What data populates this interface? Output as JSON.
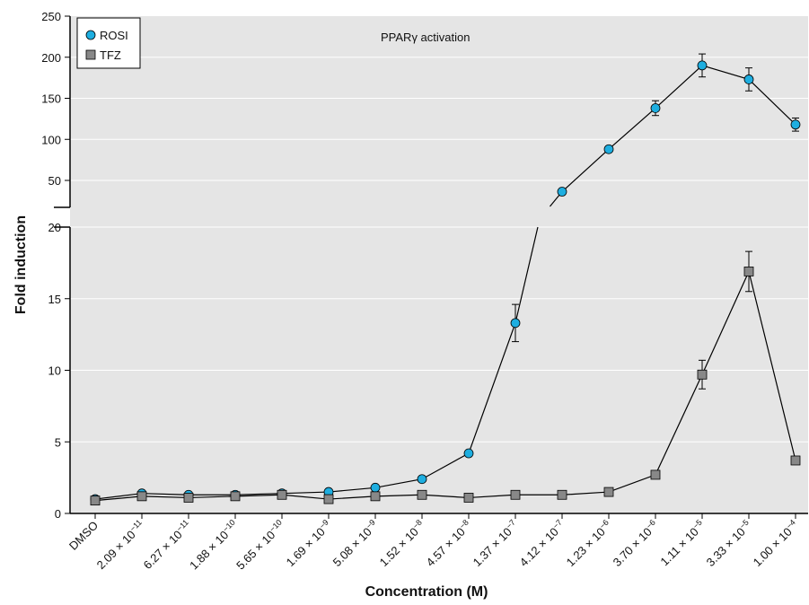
{
  "chart_data": {
    "type": "line",
    "annotation": "PPARγ activation",
    "annotation_parts": [
      "PPAR",
      "γ",
      " activation"
    ],
    "xlabel": "Concentration (M)",
    "ylabel": "Fold induction",
    "categories": [
      {
        "label": "DMSO"
      },
      {
        "mant": "2.09",
        "exp": "−11"
      },
      {
        "mant": "6.27",
        "exp": "−11"
      },
      {
        "mant": "1.88",
        "exp": "−10"
      },
      {
        "mant": "5.65",
        "exp": "−10"
      },
      {
        "mant": "1.69",
        "exp": "−9"
      },
      {
        "mant": "5.08",
        "exp": "−9"
      },
      {
        "mant": "1.52",
        "exp": "−8"
      },
      {
        "mant": "4.57",
        "exp": "−8"
      },
      {
        "mant": "1.37",
        "exp": "−7"
      },
      {
        "mant": "4.12",
        "exp": "−7"
      },
      {
        "mant": "1.23",
        "exp": "−6"
      },
      {
        "mant": "3.70",
        "exp": "−6"
      },
      {
        "mant": "1.11",
        "exp": "−5"
      },
      {
        "mant": "3.33",
        "exp": "−5"
      },
      {
        "mant": "1.00",
        "exp": "−4"
      }
    ],
    "y_ticks_lower": [
      0,
      5,
      10,
      15,
      20
    ],
    "y_ticks_upper": [
      50,
      100,
      150,
      200,
      250
    ],
    "ylim_lower": [
      0,
      20
    ],
    "ylim_upper": [
      20,
      250
    ],
    "y_break": true,
    "grid": true,
    "legend_position": "top-left",
    "series": [
      {
        "name": "ROSI",
        "marker": "circle",
        "color": "#1eaee0",
        "values": [
          1.0,
          1.4,
          1.3,
          1.3,
          1.4,
          1.5,
          1.8,
          2.4,
          4.2,
          13.3,
          42,
          88,
          138,
          190,
          173,
          118
        ],
        "errors": [
          null,
          null,
          null,
          null,
          null,
          null,
          null,
          null,
          null,
          1.3,
          null,
          null,
          9,
          14,
          14,
          8
        ]
      },
      {
        "name": "TFZ",
        "marker": "square",
        "color": "#888888",
        "values": [
          0.9,
          1.2,
          1.1,
          1.2,
          1.3,
          1.0,
          1.2,
          1.3,
          1.1,
          1.3,
          1.3,
          1.5,
          2.7,
          9.7,
          16.9,
          3.7
        ],
        "errors": [
          null,
          null,
          null,
          null,
          null,
          null,
          null,
          null,
          null,
          null,
          null,
          null,
          null,
          1.0,
          1.4,
          null
        ]
      }
    ]
  },
  "colors": {
    "plot_bg": "#e5e5e5",
    "grid": "#ffffff",
    "axis": "#000000",
    "line": "#000000"
  }
}
